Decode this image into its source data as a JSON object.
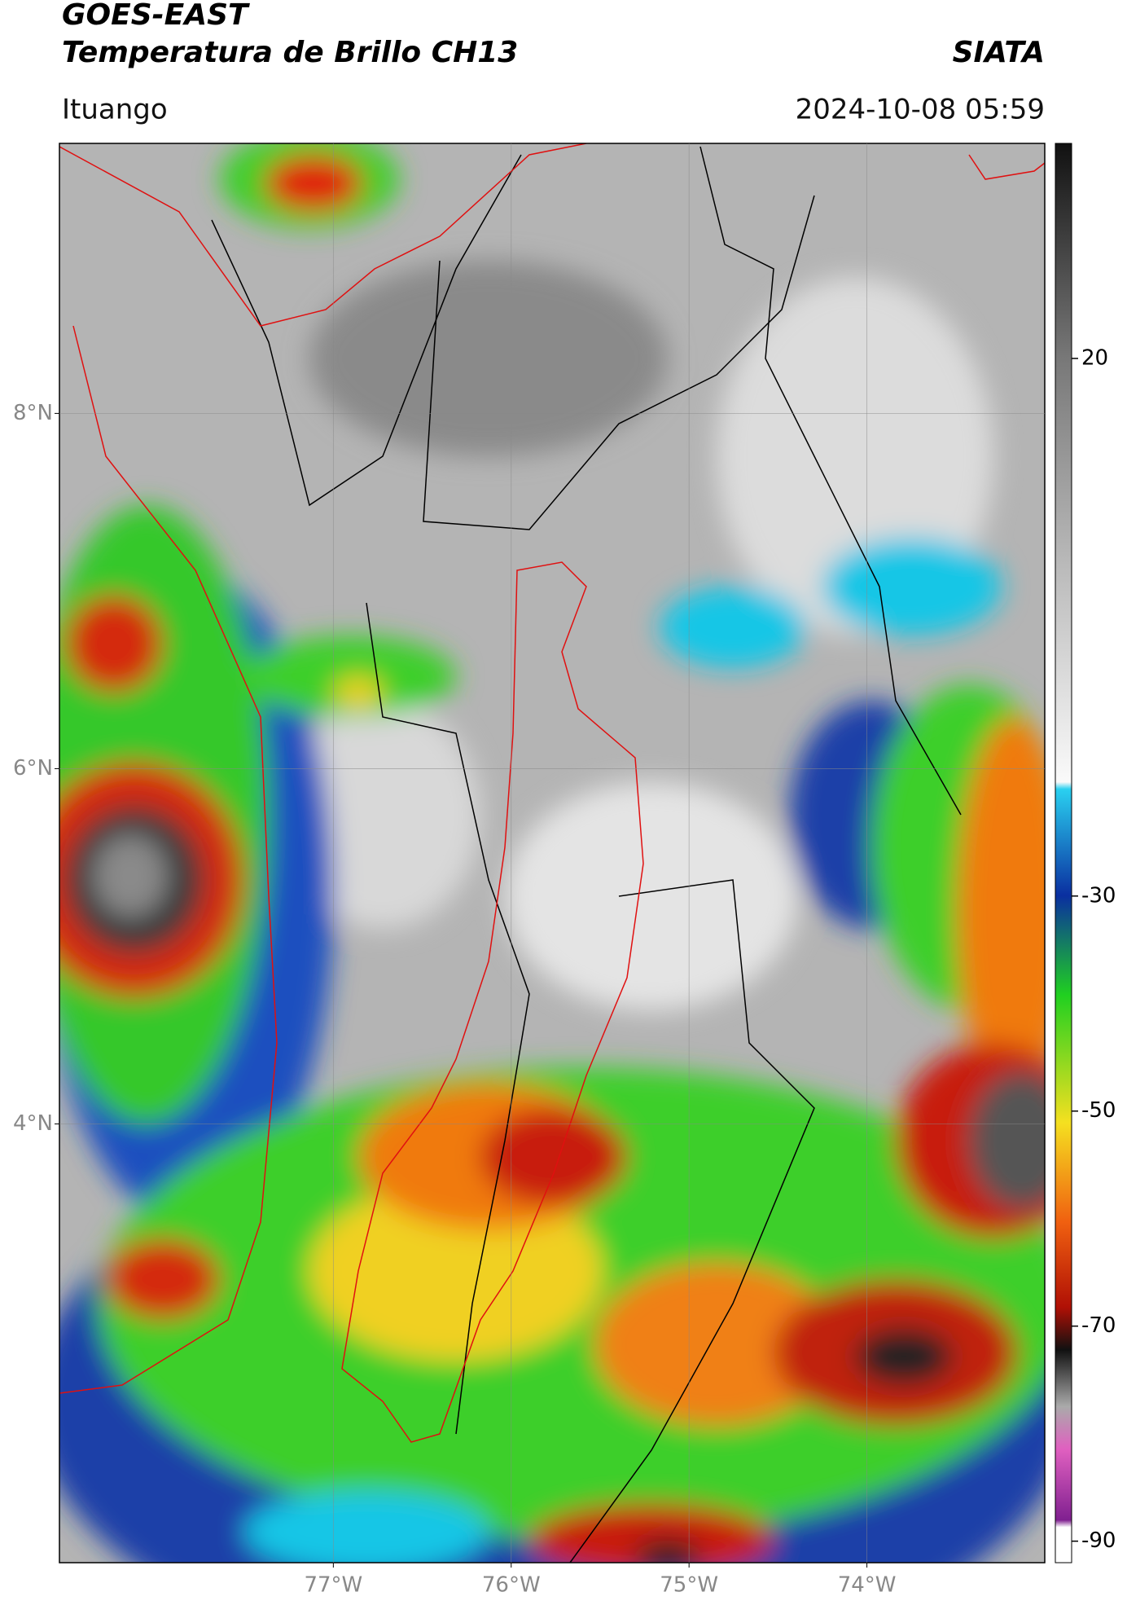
{
  "header": {
    "source": "GOES-EAST",
    "title": "Temperatura de Brillo CH13",
    "brand": "SIATA",
    "location": "Ituango",
    "datetime": "2024-10-08 05:59"
  },
  "map": {
    "latlim": [
      1.53,
      9.52
    ],
    "lonlim": [
      -78.54,
      -73.0
    ],
    "lat_ticks": [
      {
        "value": 8,
        "label": "8°N"
      },
      {
        "value": 6,
        "label": "6°N"
      },
      {
        "value": 4,
        "label": "4°N"
      }
    ],
    "lon_ticks": [
      {
        "value": -77,
        "label": "77°W"
      },
      {
        "value": -76,
        "label": "76°W"
      },
      {
        "value": -75,
        "label": "75°W"
      },
      {
        "value": -74,
        "label": "74°W"
      }
    ]
  },
  "colorbar": {
    "range": [
      -92,
      40
    ],
    "ticks": [
      20,
      -30,
      -50,
      -70,
      -90
    ]
  }
}
